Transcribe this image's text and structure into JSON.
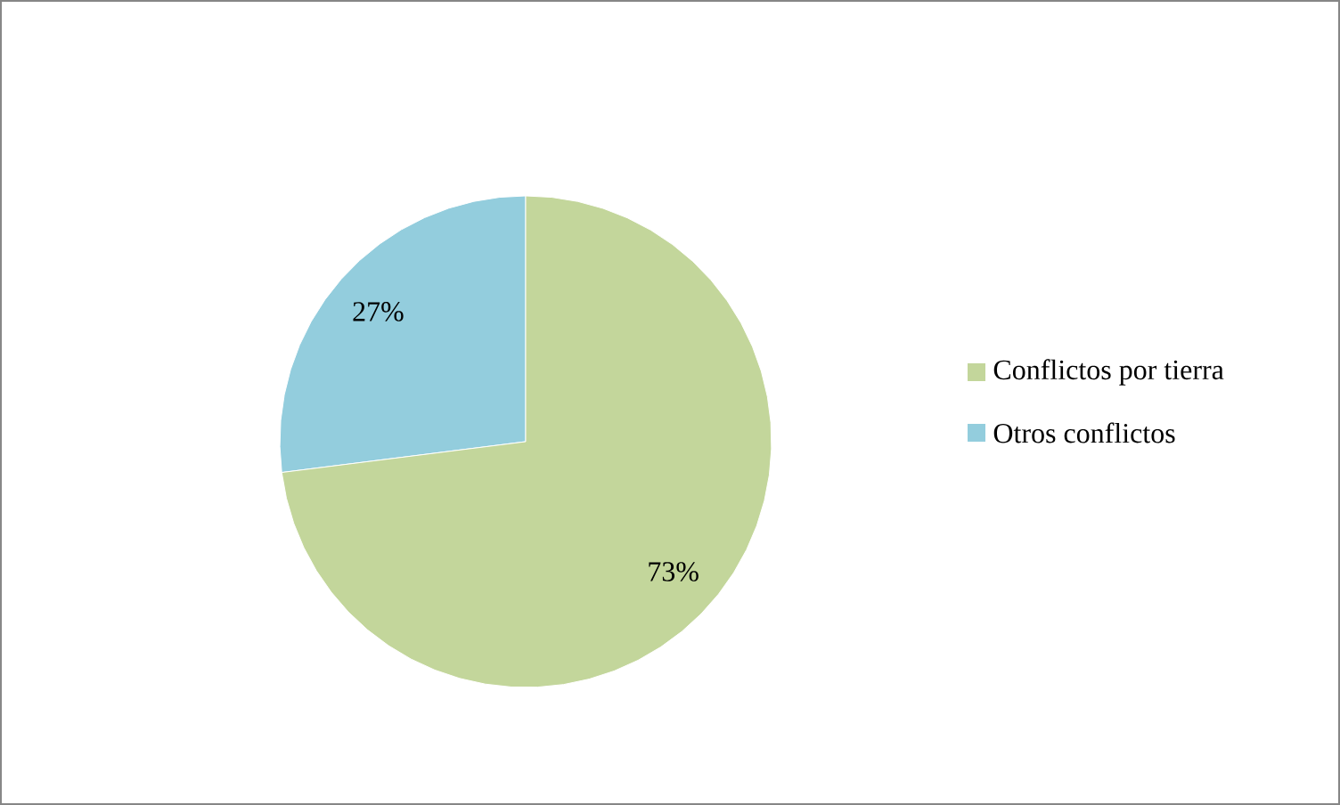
{
  "chart_data": {
    "type": "pie",
    "categories": [
      "Conflictos por tierra",
      "Otros conflictos"
    ],
    "values": [
      73,
      27
    ],
    "colors": [
      "#c3d69b",
      "#93cddd"
    ],
    "value_labels": [
      "73%",
      "27%"
    ],
    "legend": "right"
  }
}
